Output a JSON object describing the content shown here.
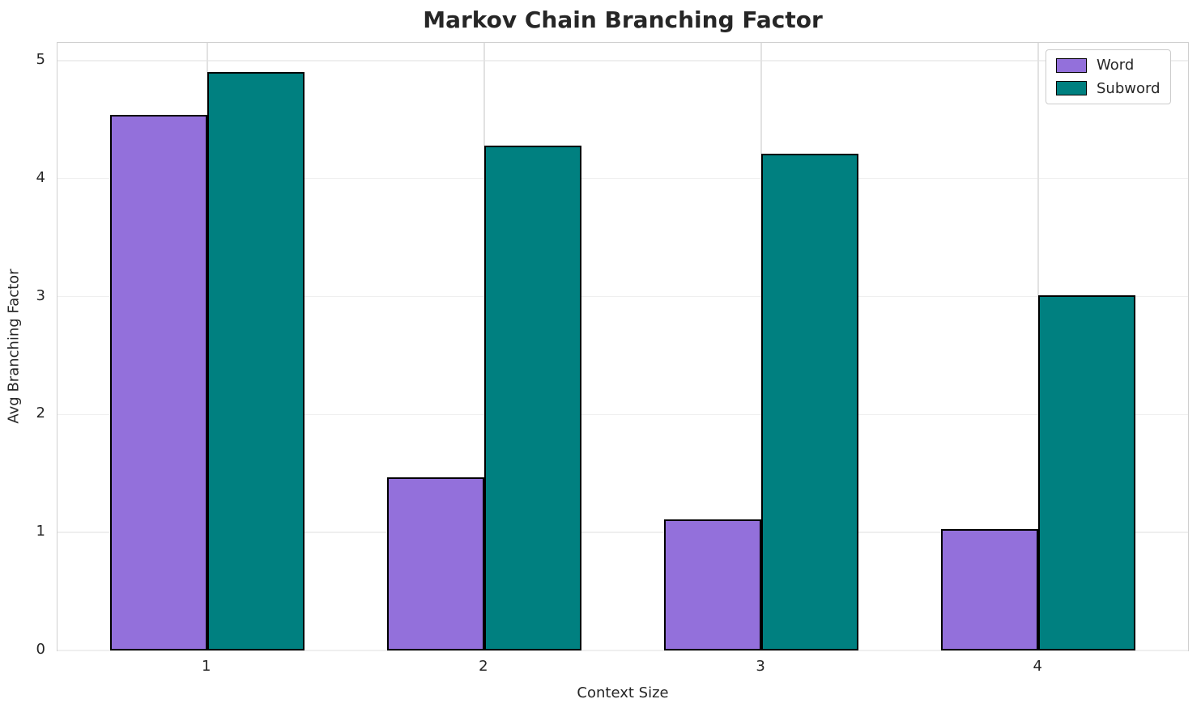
{
  "chart_data": {
    "type": "bar",
    "title": "Markov Chain Branching Factor",
    "xlabel": "Context Size",
    "ylabel": "Avg Branching Factor",
    "categories": [
      "1",
      "2",
      "3",
      "4"
    ],
    "series": [
      {
        "name": "Word",
        "color": "#9370DB",
        "edge_color": "#000000",
        "values": [
          4.54,
          1.47,
          1.11,
          1.03
        ]
      },
      {
        "name": "Subword",
        "color": "#008080",
        "edge_color": "#000000",
        "values": [
          4.9,
          4.28,
          4.21,
          3.01
        ]
      }
    ],
    "bar_width": 0.35,
    "xlim": [
      -0.54,
      3.54
    ],
    "ylim": [
      0,
      5.15
    ],
    "yticks": [
      0,
      1,
      2,
      3,
      4,
      5
    ],
    "grid": true,
    "legend_position": "upper right"
  }
}
